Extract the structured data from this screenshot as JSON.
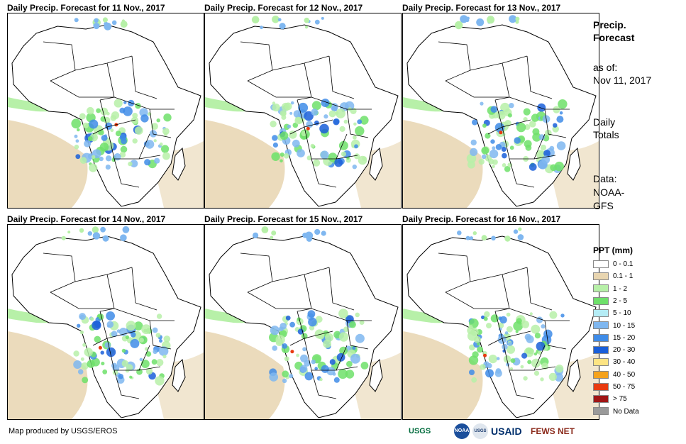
{
  "panels": [
    {
      "title": "Daily Precip. Forecast for 11 Nov., 2017"
    },
    {
      "title": "Daily Precip. Forecast for 12 Nov., 2017"
    },
    {
      "title": "Daily Precip. Forecast for 13 Nov., 2017"
    },
    {
      "title": "Daily Precip. Forecast for 14 Nov., 2017"
    },
    {
      "title": "Daily Precip. Forecast for 15 Nov., 2017"
    },
    {
      "title": "Daily Precip. Forecast for 16 Nov., 2017"
    }
  ],
  "sidebar": {
    "title_line1": "Precip.",
    "title_line2": "Forecast",
    "asof_label": "as of:",
    "asof_date": "Nov 11, 2017",
    "totals_line1": "Daily",
    "totals_line2": "Totals",
    "data_line1": "Data:",
    "data_line2": "NOAA-",
    "data_line3": "GFS"
  },
  "legend": {
    "title": "PPT (mm)",
    "items": [
      {
        "label": "0 - 0.1",
        "color": "#ffffff"
      },
      {
        "label": "0.1 - 1",
        "color": "#e8d5b0"
      },
      {
        "label": "1 - 2",
        "color": "#b7f0a8"
      },
      {
        "label": "2 - 5",
        "color": "#6ee06a"
      },
      {
        "label": "5 - 10",
        "color": "#b4ecf5"
      },
      {
        "label": "10 - 15",
        "color": "#7fb7f0"
      },
      {
        "label": "15 - 20",
        "color": "#3f8ce8"
      },
      {
        "label": "20 - 30",
        "color": "#1a5fd9"
      },
      {
        "label": "30 - 40",
        "color": "#fde483"
      },
      {
        "label": "40 - 50",
        "color": "#f5a21c"
      },
      {
        "label": "50 - 75",
        "color": "#e83a10"
      },
      {
        "label": "> 75",
        "color": "#a01515"
      },
      {
        "label": "No Data",
        "color": "#9a9a9a"
      }
    ]
  },
  "footer": {
    "credit": "Map produced by USGS/EROS",
    "logos": [
      "USGS",
      "NOAA",
      "USGS",
      "USAID",
      "FEWS NET"
    ]
  }
}
